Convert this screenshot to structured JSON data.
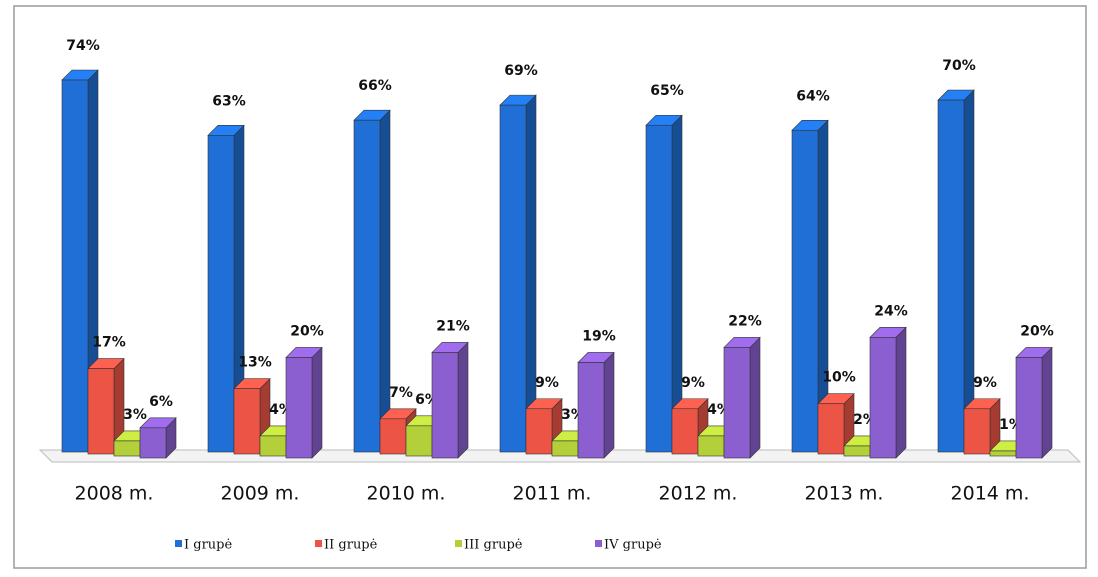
{
  "chart_data": {
    "type": "bar3d",
    "categories": [
      "2008 m.",
      "2009 m.",
      "2010 m.",
      "2011 m.",
      "2012 m.",
      "2013 m.",
      "2014 m."
    ],
    "series": [
      {
        "name": "I grupė",
        "color": "#1f6fd6",
        "values": [
          74,
          63,
          66,
          69,
          65,
          64,
          70
        ],
        "value_labels": [
          "74%",
          "63%",
          "66%",
          "69%",
          "65%",
          "64%",
          "70%"
        ]
      },
      {
        "name": "II grupė",
        "color": "#ec5446",
        "values": [
          17,
          13,
          7,
          9,
          9,
          10,
          9
        ],
        "value_labels": [
          "17%",
          "13%",
          "7%",
          "9%",
          "9%",
          "10%",
          "9%"
        ]
      },
      {
        "name": "III grupė",
        "color": "#b3cf3a",
        "values": [
          3,
          4,
          6,
          3,
          4,
          2,
          1
        ],
        "value_labels": [
          "3%",
          "4%",
          "6%",
          "3%",
          "4%",
          "2%",
          "1%"
        ]
      },
      {
        "name": "IV grupė",
        "color": "#8c5fd0",
        "values": [
          6,
          20,
          21,
          19,
          22,
          24,
          20
        ],
        "value_labels": [
          "6%",
          "20%",
          "21%",
          "19%",
          "22%",
          "24%",
          "20%"
        ]
      }
    ]
  }
}
